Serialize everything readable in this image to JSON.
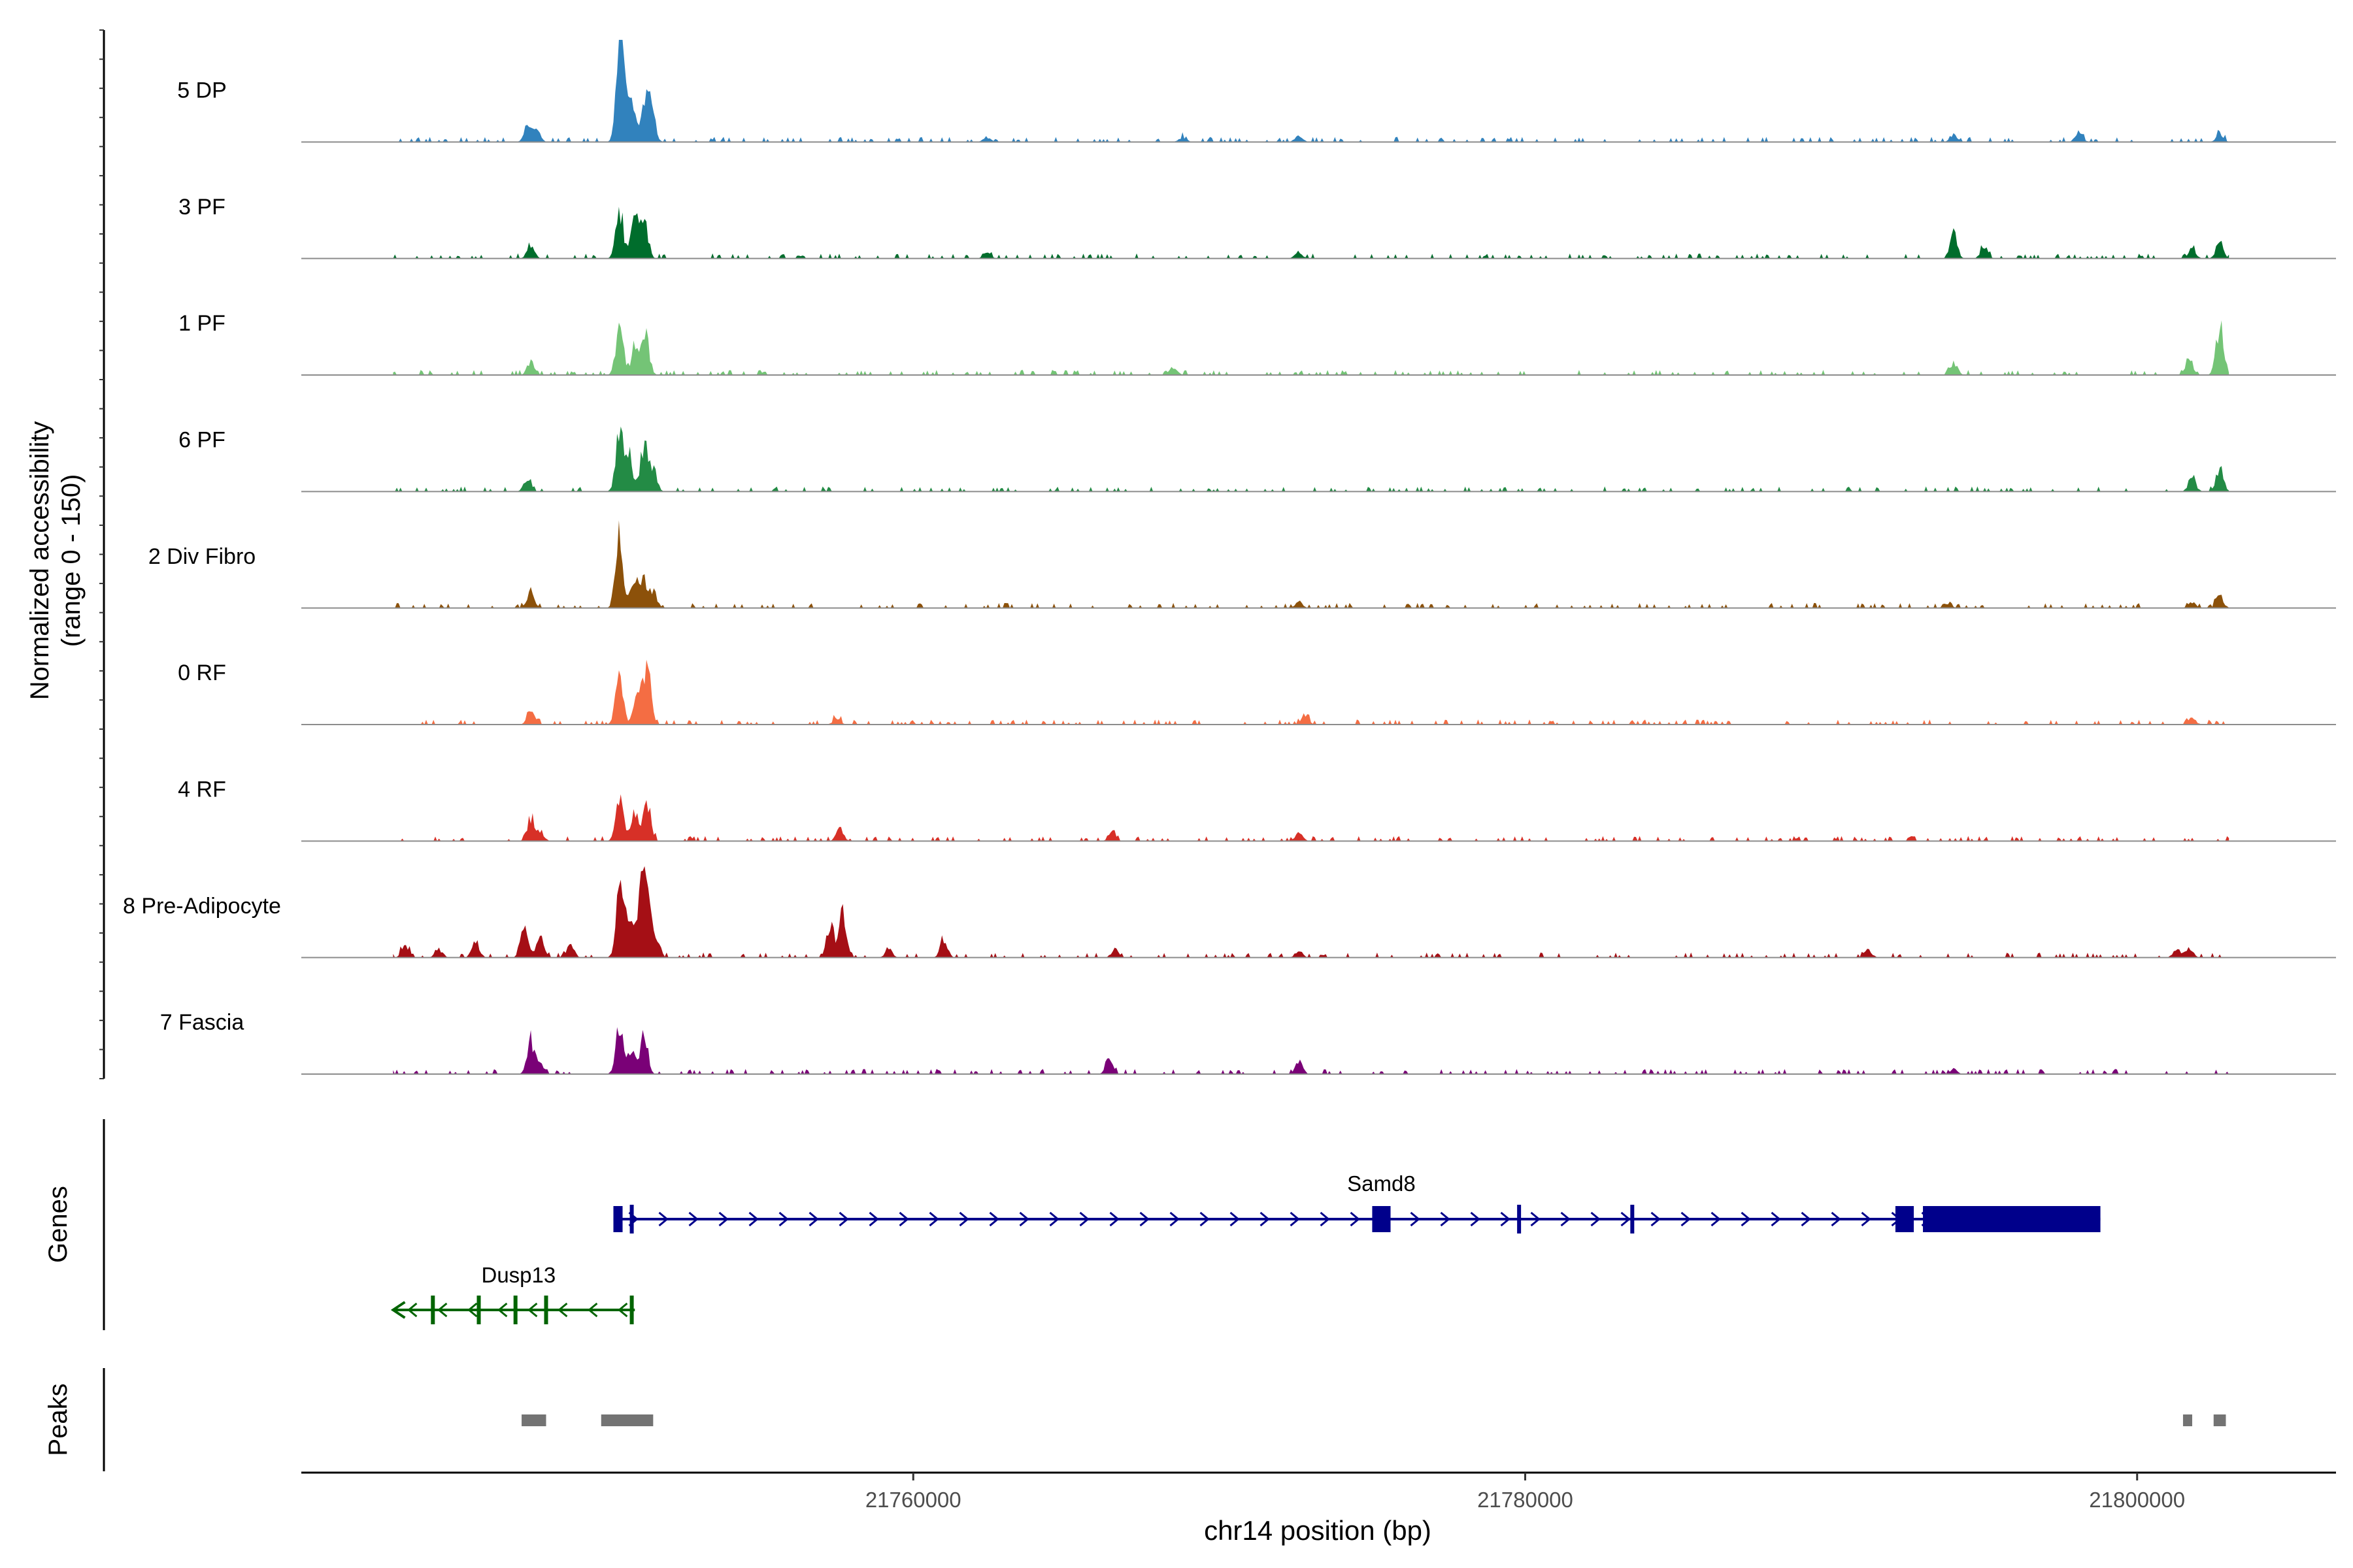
{
  "chart_data": {
    "type": "area",
    "title": "",
    "chromosome": "chr14",
    "xlabel": "chr14 position (bp)",
    "xlim": [
      21740000,
      21806500
    ],
    "x_ticks": [
      21760000,
      21780000,
      21800000
    ],
    "x_tick_labels": [
      "21760000",
      "21780000",
      "21800000"
    ],
    "ylabel_line1": "Normalized accessibility",
    "ylabel_line2": "(range 0 - 150)",
    "ylim": [
      0,
      150
    ],
    "genes_label": "Genes",
    "peaks_label": "Peaks",
    "series": [
      {
        "name": "5 DP",
        "color": "#3182bd",
        "peaks": [
          [
            21747400,
            0.2
          ],
          [
            21747700,
            0.13
          ],
          [
            21750400,
            0.8
          ],
          [
            21750500,
            1.0
          ],
          [
            21750800,
            0.46
          ],
          [
            21751200,
            0.54
          ],
          [
            21751450,
            0.4
          ],
          [
            21762400,
            0.06
          ],
          [
            21768800,
            0.06
          ],
          [
            21772600,
            0.08
          ],
          [
            21794000,
            0.1
          ],
          [
            21798100,
            0.12
          ],
          [
            21802700,
            0.08
          ]
        ]
      },
      {
        "name": "3 PF",
        "color": "#006d2c",
        "peaks": [
          [
            21747500,
            0.16
          ],
          [
            21750400,
            0.6
          ],
          [
            21750900,
            0.45
          ],
          [
            21751200,
            0.55
          ],
          [
            21762400,
            0.07
          ],
          [
            21772600,
            0.08
          ],
          [
            21794000,
            0.3
          ],
          [
            21795000,
            0.14
          ],
          [
            21801800,
            0.12
          ],
          [
            21802700,
            0.2
          ]
        ]
      },
      {
        "name": "1 PF",
        "color": "#74c476",
        "peaks": [
          [
            21747500,
            0.16
          ],
          [
            21750400,
            0.58
          ],
          [
            21750900,
            0.33
          ],
          [
            21751250,
            0.52
          ],
          [
            21768500,
            0.1
          ],
          [
            21794000,
            0.15
          ],
          [
            21801700,
            0.22
          ],
          [
            21802700,
            0.58
          ]
        ]
      },
      {
        "name": "6 PF",
        "color": "#238b45",
        "peaks": [
          [
            21747400,
            0.16
          ],
          [
            21750400,
            0.72
          ],
          [
            21750700,
            0.45
          ],
          [
            21751200,
            0.58
          ],
          [
            21751500,
            0.3
          ],
          [
            21801800,
            0.16
          ],
          [
            21802700,
            0.3
          ]
        ]
      },
      {
        "name": "2 Div Fibro",
        "color": "#8c510a",
        "peaks": [
          [
            21747500,
            0.22
          ],
          [
            21750400,
            0.95
          ],
          [
            21750900,
            0.4
          ],
          [
            21751200,
            0.33
          ],
          [
            21751500,
            0.2
          ],
          [
            21772600,
            0.08
          ],
          [
            21793800,
            0.06
          ],
          [
            21801800,
            0.07
          ],
          [
            21802700,
            0.15
          ]
        ]
      },
      {
        "name": "0 RF",
        "color": "#f46d43",
        "peaks": [
          [
            21747500,
            0.16
          ],
          [
            21750400,
            0.68
          ],
          [
            21751000,
            0.48
          ],
          [
            21751300,
            0.7
          ],
          [
            21757500,
            0.08
          ],
          [
            21772800,
            0.13
          ],
          [
            21801800,
            0.08
          ]
        ]
      },
      {
        "name": "4 RF",
        "color": "#d73027",
        "peaks": [
          [
            21747500,
            0.3
          ],
          [
            21747800,
            0.12
          ],
          [
            21750400,
            0.55
          ],
          [
            21750900,
            0.35
          ],
          [
            21751300,
            0.5
          ],
          [
            21757600,
            0.15
          ],
          [
            21766500,
            0.1
          ],
          [
            21772600,
            0.1
          ]
        ]
      },
      {
        "name": "8 Pre-Adipocyte",
        "color": "#a50f15",
        "peaks": [
          [
            21743400,
            0.15
          ],
          [
            21744500,
            0.1
          ],
          [
            21745700,
            0.2
          ],
          [
            21747300,
            0.42
          ],
          [
            21747800,
            0.25
          ],
          [
            21748800,
            0.15
          ],
          [
            21750400,
            0.78
          ],
          [
            21750700,
            0.55
          ],
          [
            21751100,
            0.8
          ],
          [
            21751300,
            0.75
          ],
          [
            21751600,
            0.25
          ],
          [
            21757300,
            0.42
          ],
          [
            21757700,
            0.55
          ],
          [
            21759200,
            0.1
          ],
          [
            21761000,
            0.22
          ],
          [
            21766600,
            0.1
          ],
          [
            21772600,
            0.08
          ],
          [
            21791200,
            0.1
          ],
          [
            21801300,
            0.1
          ],
          [
            21801700,
            0.12
          ]
        ]
      },
      {
        "name": "7 Fascia",
        "color": "#7a0177",
        "peaks": [
          [
            21747500,
            0.4
          ],
          [
            21747800,
            0.15
          ],
          [
            21750400,
            0.6
          ],
          [
            21750800,
            0.3
          ],
          [
            21751200,
            0.48
          ],
          [
            21766400,
            0.16
          ],
          [
            21772600,
            0.16
          ],
          [
            21794000,
            0.06
          ]
        ]
      }
    ],
    "genes": [
      {
        "name": "Samd8",
        "strand": "+",
        "color": "#00008b",
        "start": 21750200,
        "end": 21798800,
        "exons": [
          [
            21750200,
            21750500
          ],
          [
            21775000,
            21775600
          ],
          [
            21792100,
            21792700
          ],
          [
            21793000,
            21798800
          ]
        ],
        "tick_exons": [
          21750800,
          21779800,
          21783500
        ]
      },
      {
        "name": "Dusp13",
        "strand": "-",
        "color": "#006400",
        "start": 21743000,
        "end": 21750900,
        "exons": [],
        "tick_exons": [
          21744300,
          21745800,
          21747000,
          21748000,
          21750800
        ]
      }
    ],
    "peaks": [
      [
        21747200,
        21748000
      ],
      [
        21749800,
        21751500
      ],
      [
        21801500,
        21801800
      ],
      [
        21802500,
        21802900
      ]
    ]
  }
}
